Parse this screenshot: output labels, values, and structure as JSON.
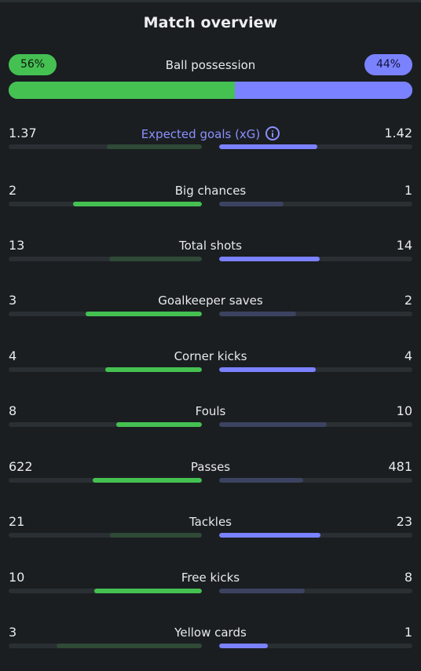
{
  "title": "Match overview",
  "possession": {
    "label": "Ball possession",
    "home_text": "56%",
    "away_text": "44%",
    "home": 0.56,
    "away": 0.44,
    "home_color": "#45c152",
    "away_color": "#7b82ff"
  },
  "stats": [
    {
      "name": "Expected goals (xG)",
      "home": "1.37",
      "away": "1.42",
      "highlight": true,
      "icon": "info-icon",
      "home_fill": 0.49,
      "away_fill": 0.51,
      "winner": "away"
    },
    {
      "name": "Big chances",
      "home": "2",
      "away": "1",
      "home_fill": 0.667,
      "away_fill": 0.333,
      "winner": "home"
    },
    {
      "name": "Total shots",
      "home": "13",
      "away": "14",
      "home_fill": 0.48,
      "away_fill": 0.52,
      "winner": "away"
    },
    {
      "name": "Goalkeeper saves",
      "home": "3",
      "away": "2",
      "home_fill": 0.6,
      "away_fill": 0.4,
      "winner": "home"
    },
    {
      "name": "Corner kicks",
      "home": "4",
      "away": "4",
      "home_fill": 0.5,
      "away_fill": 0.5,
      "winner": "both"
    },
    {
      "name": "Fouls",
      "home": "8",
      "away": "10",
      "home_fill": 0.444,
      "away_fill": 0.556,
      "winner": "home"
    },
    {
      "name": "Passes",
      "home": "622",
      "away": "481",
      "home_fill": 0.564,
      "away_fill": 0.436,
      "winner": "home"
    },
    {
      "name": "Tackles",
      "home": "21",
      "away": "23",
      "home_fill": 0.477,
      "away_fill": 0.523,
      "winner": "away"
    },
    {
      "name": "Free kicks",
      "home": "10",
      "away": "8",
      "home_fill": 0.556,
      "away_fill": 0.444,
      "winner": "home"
    },
    {
      "name": "Yellow cards",
      "home": "3",
      "away": "1",
      "home_fill": 0.75,
      "away_fill": 0.25,
      "winner": "away"
    }
  ]
}
